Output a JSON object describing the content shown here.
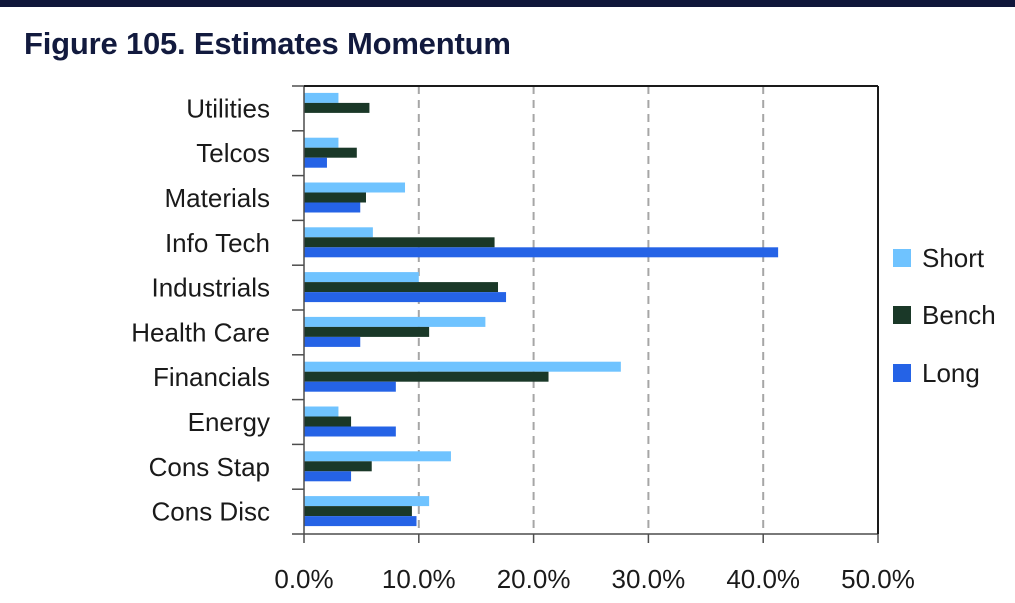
{
  "figure": {
    "title": "Figure 105. Estimates Momentum"
  },
  "chart_data": {
    "type": "bar",
    "orientation": "horizontal",
    "title": "Figure 105. Estimates Momentum",
    "xlabel": "",
    "ylabel": "",
    "xlim": [
      0,
      50
    ],
    "x_ticks": [
      "0.0%",
      "10.0%",
      "20.0%",
      "30.0%",
      "40.0%",
      "50.0%"
    ],
    "x_tick_values": [
      0,
      10,
      20,
      30,
      40,
      50
    ],
    "grid": "vertical-dashed",
    "legend_position": "right",
    "categories": [
      "Utilities",
      "Telcos",
      "Materials",
      "Info Tech",
      "Industrials",
      "Health Care",
      "Financials",
      "Energy",
      "Cons Stap",
      "Cons Disc"
    ],
    "series": [
      {
        "name": "Short",
        "color": "#6fc3ff",
        "values": [
          3.0,
          3.0,
          8.8,
          6.0,
          10.0,
          15.8,
          27.6,
          3.0,
          12.8,
          10.9
        ]
      },
      {
        "name": "Bench",
        "color": "#1a3828",
        "values": [
          5.7,
          4.6,
          5.4,
          16.6,
          16.9,
          10.9,
          21.3,
          4.1,
          5.9,
          9.4
        ]
      },
      {
        "name": "Long",
        "color": "#2563e6",
        "values": [
          0.0,
          2.0,
          4.9,
          41.3,
          17.6,
          4.9,
          8.0,
          8.0,
          4.1,
          9.8
        ]
      }
    ]
  }
}
